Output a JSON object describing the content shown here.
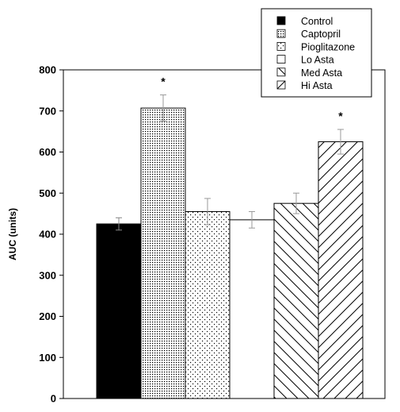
{
  "chart_data": {
    "type": "bar",
    "title": "",
    "xlabel": "",
    "ylabel": "AUC (units)",
    "ylim": [
      0,
      800
    ],
    "yticks": [
      0,
      100,
      200,
      300,
      400,
      500,
      600,
      700,
      800
    ],
    "grid": false,
    "legend_position": "top-right",
    "categories": [
      "Control",
      "Captopril",
      "Pioglitazone",
      "Lo Asta",
      "Med Asta",
      "Hi Asta"
    ],
    "series": [
      {
        "values": [
          425,
          707,
          455,
          435,
          475,
          625
        ],
        "errors": [
          15,
          32,
          32,
          20,
          25,
          30
        ]
      }
    ],
    "fills": [
      "solid-black",
      "dense-dots",
      "sparse-dots",
      "white",
      "back-diagonal",
      "forward-diagonal"
    ],
    "significance": [
      "",
      "*",
      "",
      "",
      "",
      "*"
    ]
  }
}
